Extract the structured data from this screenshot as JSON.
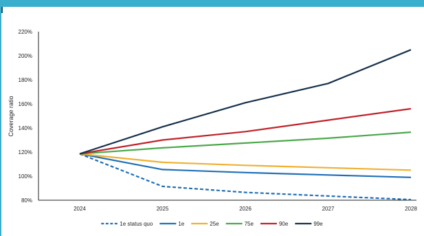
{
  "chart_data": {
    "type": "line",
    "ylabel": "Coverage ratio",
    "xlabel": "",
    "x": [
      "2024",
      "2025",
      "2026",
      "2027",
      "2028"
    ],
    "ylim": [
      80,
      220
    ],
    "yticks": [
      80,
      100,
      120,
      140,
      160,
      180,
      200,
      220
    ],
    "ytick_labels": [
      "80%",
      "100%",
      "120%",
      "140%",
      "160%",
      "180%",
      "200%",
      "220%"
    ],
    "grid": false,
    "legend_position": "bottom",
    "series": [
      {
        "name": "1e status quo",
        "color": "#1f6fb5",
        "dashed": true,
        "values": [
          118.5,
          91.5,
          86.5,
          83.5,
          80.5
        ]
      },
      {
        "name": "1e",
        "color": "#1f6fb5",
        "dashed": false,
        "values": [
          118.5,
          105.5,
          103,
          101,
          99
        ]
      },
      {
        "name": "25e",
        "color": "#f0b030",
        "dashed": false,
        "values": [
          118.5,
          111.5,
          109,
          107,
          105
        ]
      },
      {
        "name": "75e",
        "color": "#4aa84a",
        "dashed": false,
        "values": [
          118.5,
          123.5,
          127.5,
          131.5,
          136.5
        ]
      },
      {
        "name": "90e",
        "color": "#c0222a",
        "dashed": false,
        "values": [
          118.5,
          130,
          137,
          146.5,
          156
        ]
      },
      {
        "name": "99e",
        "color": "#16304a",
        "dashed": false,
        "values": [
          118.5,
          141,
          161,
          177,
          205
        ]
      }
    ]
  },
  "colors": {
    "header_band": "#3aaecd",
    "axis": "#222222"
  }
}
